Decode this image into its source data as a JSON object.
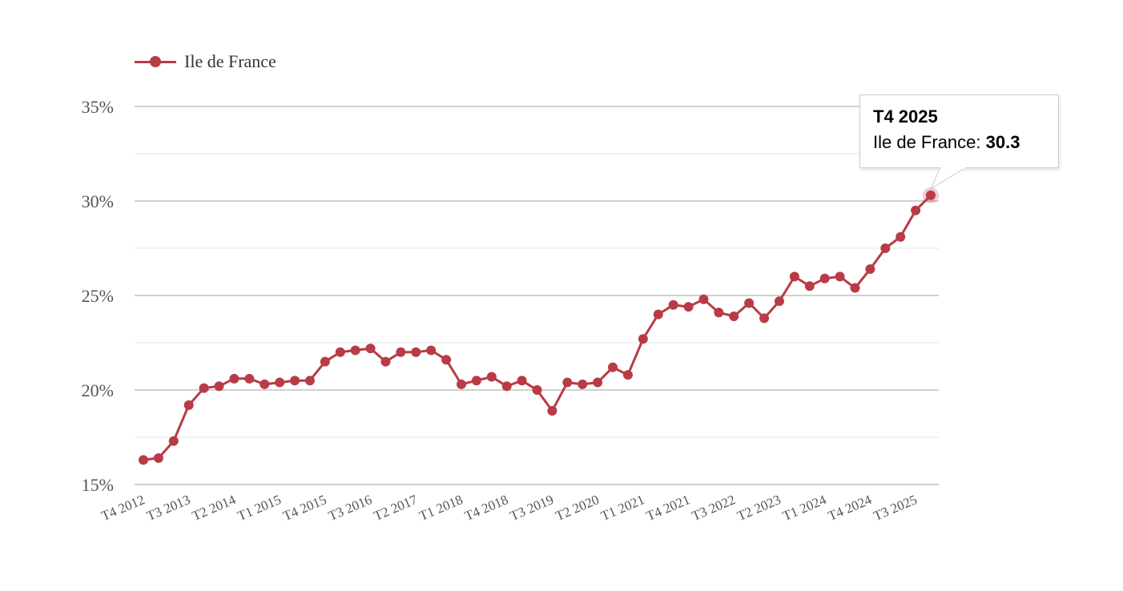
{
  "chart_data": {
    "type": "line",
    "x": [
      "T4 2012",
      "T1 2013",
      "T2 2013",
      "T3 2013",
      "T4 2013",
      "T1 2014",
      "T2 2014",
      "T3 2014",
      "T4 2014",
      "T1 2015",
      "T2 2015",
      "T3 2015",
      "T4 2015",
      "T1 2016",
      "T2 2016",
      "T3 2016",
      "T4 2016",
      "T1 2017",
      "T2 2017",
      "T3 2017",
      "T4 2017",
      "T1 2018",
      "T2 2018",
      "T3 2018",
      "T4 2018",
      "T1 2019",
      "T2 2019",
      "T3 2019",
      "T4 2019",
      "T1 2020",
      "T2 2020",
      "T3 2020",
      "T4 2020",
      "T1 2021",
      "T2 2021",
      "T3 2021",
      "T4 2021",
      "T1 2022",
      "T2 2022",
      "T3 2022",
      "T4 2022",
      "T1 2023",
      "T2 2023",
      "T3 2023",
      "T4 2023",
      "T1 2024",
      "T2 2024",
      "T3 2024",
      "T4 2024",
      "T1 2025",
      "T2 2025",
      "T3 2025",
      "T4 2025"
    ],
    "series": [
      {
        "name": "Ile de France",
        "color": "#b83b46",
        "values": [
          16.3,
          16.4,
          17.3,
          19.2,
          20.1,
          20.2,
          20.6,
          20.6,
          20.3,
          20.4,
          20.5,
          20.5,
          21.5,
          22.0,
          22.1,
          22.2,
          21.5,
          22.0,
          22.0,
          22.1,
          21.6,
          20.3,
          20.5,
          20.7,
          20.2,
          20.5,
          20.0,
          18.9,
          20.4,
          20.3,
          20.4,
          21.2,
          20.8,
          22.7,
          24.0,
          24.5,
          24.4,
          24.8,
          24.1,
          23.9,
          24.6,
          23.8,
          24.7,
          26.0,
          25.5,
          25.9,
          26.0,
          25.4,
          26.4,
          27.5,
          28.1,
          29.5,
          30.3
        ]
      }
    ],
    "x_tick_labels": [
      "T4 2012",
      "T3 2013",
      "T2 2014",
      "T1 2015",
      "T4 2015",
      "T3 2016",
      "T2 2017",
      "T1 2018",
      "T4 2018",
      "T3 2019",
      "T2 2020",
      "T1 2021",
      "T4 2021",
      "T3 2022",
      "T2 2023",
      "T1 2024",
      "T4 2024",
      "T3 2025"
    ],
    "y_tick_labels": [
      "15%",
      "20%",
      "25%",
      "30%",
      "35%"
    ],
    "ylim": [
      15,
      35
    ],
    "grid": true,
    "legend": "top-left",
    "tooltip": {
      "title": "T4 2025",
      "series_label": "Ile de France: ",
      "value": "30.3"
    }
  }
}
